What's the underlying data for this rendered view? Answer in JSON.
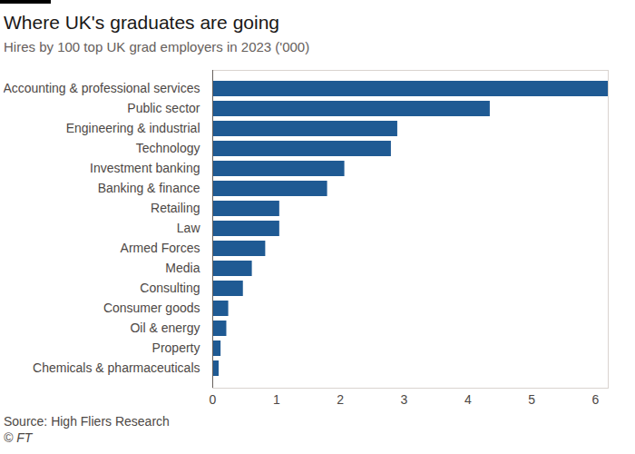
{
  "chart_data": {
    "type": "bar",
    "orientation": "horizontal",
    "title": "Where UK's graduates are going",
    "subtitle": "Hires by 100 top UK grad employers in 2023 ('000)",
    "source": "Source: High Fliers Research",
    "credit": "© FT",
    "categories": [
      "Accounting & professional services",
      "Public sector",
      "Engineering & industrial",
      "Technology",
      "Investment banking",
      "Banking & finance",
      "Retailing",
      "Law",
      "Armed Forces",
      "Media",
      "Consulting",
      "Consumer goods",
      "Oil & energy",
      "Property",
      "Chemicals & pharmaceuticals"
    ],
    "values": [
      6.2,
      4.35,
      2.9,
      2.8,
      2.07,
      1.8,
      1.05,
      1.05,
      0.83,
      0.62,
      0.48,
      0.25,
      0.22,
      0.13,
      0.1
    ],
    "color": "#1f5a93",
    "xlim": [
      0,
      6.2
    ],
    "xticks": [
      0,
      1,
      2,
      3,
      4,
      5,
      6
    ],
    "grid": false
  }
}
